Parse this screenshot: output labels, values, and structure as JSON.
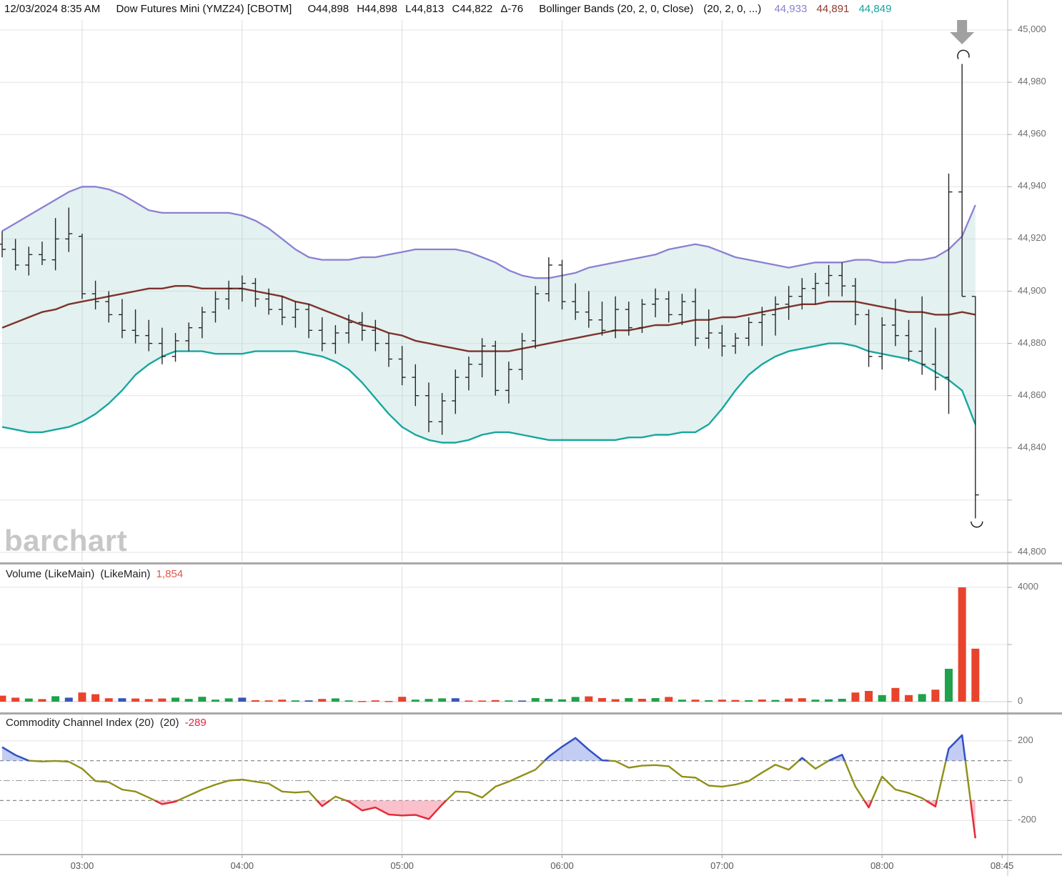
{
  "header": {
    "datetime": "12/03/2024 8:35 AM",
    "symbol": "Dow Futures Mini (YMZ24) [CBOTM]",
    "open": "O44,898",
    "high": "H44,898",
    "low": "L44,813",
    "close": "C44,822",
    "delta": "Δ-76",
    "study": "Bollinger Bands (20, 2, 0, Close)",
    "study_params": "(20, 2, 0, ...)",
    "upper_value": "44,933",
    "middle_value": "44,891",
    "lower_value": "44,849"
  },
  "watermark": "barchart",
  "volume_panel": {
    "title": "Volume (LikeMain)",
    "params": "(LikeMain)",
    "last_value": "1,854"
  },
  "cci_panel": {
    "title": "Commodity Channel Index (20)",
    "params": "(20)",
    "last_value": "-289"
  },
  "colors": {
    "header_upper": "#8781d0",
    "header_middle": "#8d3a31",
    "header_lower": "#12a3a0",
    "volume_value": "#e2574b",
    "cci_value": "#e22741",
    "bar_color": "#262626",
    "bollinger_upper": "#8a80d2",
    "bollinger_middle": "#7d332c",
    "bollinger_lower": "#17a79f",
    "band_fill": "rgba(174,214,211,0.35)",
    "volume_up": "#1fa24a",
    "volume_down": "#e8432d",
    "volume_neutral": "#3a55b4",
    "cci_line": "#8f8f17",
    "cci_high": "#3050cc",
    "cci_low": "#e42b3d",
    "cci_high_fill": "rgba(122,144,230,0.45)",
    "cci_low_fill": "rgba(246,150,168,0.6)",
    "grid": "#e4e4e4",
    "grid_vertical": "#dcdcdc",
    "axis_line": "#c4c4c4",
    "arrow": "#a0a0a0",
    "axis_text": "#6f6f6f"
  },
  "chart_data": {
    "type": "ohlc-bar with bollinger bands, volume and cci panels",
    "start_time": "02:30",
    "interval_minutes": 5,
    "price_axis": {
      "range": [
        44800,
        45000
      ],
      "step": 20,
      "tick_labels": [
        {
          "v": 45000,
          "label": "45,000"
        },
        {
          "v": 44980,
          "label": "44,980"
        },
        {
          "v": 44960,
          "label": "44,960"
        },
        {
          "v": 44940,
          "label": "44,940"
        },
        {
          "v": 44920,
          "label": "44,920"
        },
        {
          "v": 44900,
          "label": "44,900"
        },
        {
          "v": 44880,
          "label": "44,880"
        },
        {
          "v": 44860,
          "label": "44,860"
        },
        {
          "v": 44840,
          "label": "44,840"
        },
        {
          "v": 44800,
          "label": "44,800"
        }
      ]
    },
    "volume_axis": {
      "range": [
        0,
        4000
      ],
      "grid": [
        0,
        2000,
        4000
      ],
      "tick_labels": [
        {
          "v": 4000,
          "label": "4000"
        },
        {
          "v": 0,
          "label": "0"
        }
      ]
    },
    "cci_axis": {
      "solid_grid": [
        200,
        -200
      ],
      "dashed_grid": [
        100,
        -100
      ],
      "dashdot_grid": [
        0
      ],
      "tick_labels": [
        {
          "v": 200,
          "label": "200"
        },
        {
          "v": 0,
          "label": "0"
        },
        {
          "v": -200,
          "label": "-200"
        }
      ]
    },
    "time_ticks": [
      {
        "label": "03:00",
        "minutes": 30,
        "grid": true
      },
      {
        "label": "04:00",
        "minutes": 90,
        "grid": true
      },
      {
        "label": "05:00",
        "minutes": 150,
        "grid": true
      },
      {
        "label": "06:00",
        "minutes": 210,
        "grid": true
      },
      {
        "label": "07:00",
        "minutes": 270,
        "grid": true
      },
      {
        "label": "08:00",
        "minutes": 330,
        "grid": true
      },
      {
        "label": "08:45",
        "minutes": 375,
        "grid": false
      }
    ],
    "badges": [
      {
        "panel": "price",
        "value": 44933,
        "label": "44,933",
        "color": "#7b66c9"
      },
      {
        "panel": "price",
        "value": 44891,
        "label": "44,891",
        "color": "#9e2a23"
      },
      {
        "panel": "price",
        "value": 44849,
        "label": "44,849",
        "color": "#12a3a3"
      },
      {
        "panel": "price",
        "value": 44822,
        "label": "44,822",
        "color": "#0a0a0a"
      },
      {
        "panel": "volume",
        "value": 1854,
        "label": "1854",
        "color": "#e8402c"
      },
      {
        "panel": "cci",
        "value": -289,
        "label": "-289",
        "color": "#e81c35"
      }
    ],
    "ohlc": [
      [
        44918,
        44923,
        44913,
        44916
      ],
      [
        44916,
        44920,
        44908,
        44910
      ],
      [
        44910,
        44917,
        44906,
        44914
      ],
      [
        44914,
        44919,
        44910,
        44912
      ],
      [
        44912,
        44928,
        44908,
        44920
      ],
      [
        44920,
        44932,
        44915,
        44922
      ],
      [
        44921,
        44922,
        44897,
        44899
      ],
      [
        44899,
        44904,
        44893,
        44896
      ],
      [
        44896,
        44900,
        44888,
        44891
      ],
      [
        44891,
        44897,
        44882,
        44885
      ],
      [
        44885,
        44893,
        44880,
        44883
      ],
      [
        44883,
        44889,
        44877,
        44880
      ],
      [
        44880,
        44886,
        44872,
        44875
      ],
      [
        44875,
        44884,
        44873,
        44881
      ],
      [
        44881,
        44888,
        44877,
        44886
      ],
      [
        44886,
        44894,
        44882,
        44892
      ],
      [
        44892,
        44900,
        44888,
        44897
      ],
      [
        44897,
        44904,
        44893,
        44901
      ],
      [
        44901,
        44906,
        44896,
        44903
      ],
      [
        44903,
        44905,
        44894,
        44897
      ],
      [
        44897,
        44901,
        44891,
        44893
      ],
      [
        44893,
        44898,
        44887,
        44890
      ],
      [
        44890,
        44896,
        44886,
        44893
      ],
      [
        44893,
        44895,
        44882,
        44885
      ],
      [
        44885,
        44890,
        44877,
        44880
      ],
      [
        44880,
        44887,
        44876,
        44884
      ],
      [
        44884,
        44891,
        44880,
        44888
      ],
      [
        44888,
        44892,
        44881,
        44885
      ],
      [
        44885,
        44889,
        44877,
        44880
      ],
      [
        44880,
        44884,
        44871,
        44874
      ],
      [
        44874,
        44879,
        44864,
        44867
      ],
      [
        44867,
        44872,
        44856,
        44860
      ],
      [
        44860,
        44865,
        44846,
        44850
      ],
      [
        44850,
        44861,
        44845,
        44858
      ],
      [
        44858,
        44870,
        44853,
        44867
      ],
      [
        44867,
        44875,
        44862,
        44872
      ],
      [
        44872,
        44882,
        44867,
        44879
      ],
      [
        44879,
        44881,
        44860,
        44862
      ],
      [
        44862,
        44873,
        44857,
        44870
      ],
      [
        44870,
        44884,
        44866,
        44881
      ],
      [
        44881,
        44902,
        44878,
        44899
      ],
      [
        44899,
        44913,
        44896,
        44910
      ],
      [
        44910,
        44912,
        44893,
        44896
      ],
      [
        44896,
        44903,
        44889,
        44892
      ],
      [
        44892,
        44900,
        44886,
        44889
      ],
      [
        44889,
        44896,
        44883,
        44885
      ],
      [
        44885,
        44898,
        44882,
        44893
      ],
      [
        44893,
        44896,
        44883,
        44886
      ],
      [
        44886,
        44897,
        44884,
        44895
      ],
      [
        44895,
        44901,
        44890,
        44897
      ],
      [
        44897,
        44900,
        44888,
        44891
      ],
      [
        44891,
        44899,
        44887,
        44896
      ],
      [
        44896,
        44901,
        44879,
        44882
      ],
      [
        44882,
        44893,
        44878,
        44884
      ],
      [
        44884,
        44887,
        44875,
        44879
      ],
      [
        44879,
        44884,
        44876,
        44882
      ],
      [
        44882,
        44890,
        44879,
        44888
      ],
      [
        44888,
        44894,
        44879,
        44891
      ],
      [
        44891,
        44898,
        44883,
        44895
      ],
      [
        44895,
        44902,
        44889,
        44898
      ],
      [
        44898,
        44905,
        44893,
        44901
      ],
      [
        44901,
        44907,
        44895,
        44903
      ],
      [
        44903,
        44910,
        44898,
        44906
      ],
      [
        44906,
        44911,
        44898,
        44902
      ],
      [
        44902,
        44905,
        44887,
        44891
      ],
      [
        44891,
        44893,
        44871,
        44875
      ],
      [
        44875,
        44890,
        44870,
        44887
      ],
      [
        44887,
        44897,
        44879,
        44883
      ],
      [
        44883,
        44889,
        44873,
        44877
      ],
      [
        44877,
        44898,
        44868,
        44872
      ],
      [
        44872,
        44886,
        44862,
        44867
      ],
      [
        44867,
        44945,
        44853,
        44938
      ],
      [
        44938,
        44987,
        44898,
        44898
      ],
      [
        44898,
        44898,
        44813,
        44822
      ]
    ],
    "volume": [
      210,
      140,
      110,
      90,
      190,
      140,
      320,
      260,
      120,
      120,
      110,
      90,
      110,
      140,
      95,
      170,
      70,
      115,
      140,
      50,
      45,
      70,
      45,
      45,
      95,
      115,
      45,
      25,
      45,
      25,
      170,
      70,
      95,
      115,
      120,
      40,
      40,
      55,
      45,
      40,
      125,
      100,
      80,
      165,
      185,
      125,
      85,
      125,
      100,
      125,
      165,
      70,
      70,
      50,
      70,
      60,
      50,
      75,
      60,
      110,
      120,
      70,
      80,
      100,
      320,
      375,
      230,
      480,
      230,
      265,
      420,
      1150,
      4000,
      1854
    ],
    "volume_colors": [
      "r",
      "r",
      "g",
      "r",
      "g",
      "b",
      "r",
      "r",
      "r",
      "b",
      "r",
      "r",
      "r",
      "g",
      "g",
      "g",
      "g",
      "g",
      "b",
      "r",
      "r",
      "r",
      "g",
      "b",
      "r",
      "g",
      "g",
      "r",
      "r",
      "r",
      "r",
      "g",
      "g",
      "g",
      "b",
      "r",
      "r",
      "r",
      "g",
      "b",
      "g",
      "g",
      "g",
      "g",
      "r",
      "r",
      "r",
      "g",
      "r",
      "g",
      "r",
      "g",
      "r",
      "g",
      "r",
      "r",
      "g",
      "r",
      "g",
      "r",
      "r",
      "g",
      "g",
      "g",
      "r",
      "r",
      "g",
      "r",
      "r",
      "g",
      "r",
      "g",
      "r",
      "r"
    ],
    "cci": [
      168,
      128,
      100,
      96,
      99,
      95,
      60,
      -2,
      -8,
      -45,
      -55,
      -85,
      -118,
      -105,
      -75,
      -45,
      -20,
      0,
      5,
      -5,
      -15,
      -55,
      -60,
      -55,
      -128,
      -80,
      -105,
      -150,
      -135,
      -170,
      -175,
      -172,
      -193,
      -120,
      -55,
      -58,
      -85,
      -30,
      -5,
      25,
      55,
      120,
      170,
      214,
      155,
      102,
      98,
      65,
      75,
      78,
      72,
      20,
      15,
      -25,
      -30,
      -20,
      -2,
      40,
      80,
      55,
      114,
      60,
      100,
      130,
      -30,
      -135,
      20,
      -45,
      -62,
      -88,
      -130,
      160,
      228,
      -289
    ],
    "bands": {
      "upper": [
        44923,
        44926,
        44929,
        44932,
        44935,
        44938,
        44940,
        44940,
        44939,
        44937,
        44934,
        44931,
        44930,
        44930,
        44930,
        44930,
        44930,
        44930,
        44929,
        44927,
        44924,
        44920,
        44916,
        44913,
        44912,
        44912,
        44912,
        44913,
        44913,
        44914,
        44915,
        44916,
        44916,
        44916,
        44916,
        44915,
        44913,
        44911,
        44908,
        44906,
        44905,
        44905,
        44906,
        44907,
        44909,
        44910,
        44911,
        44912,
        44913,
        44914,
        44916,
        44917,
        44918,
        44917,
        44915,
        44913,
        44912,
        44911,
        44910,
        44909,
        44910,
        44911,
        44911,
        44911,
        44912,
        44912,
        44911,
        44911,
        44912,
        44912,
        44913,
        44916,
        44921,
        44933
      ],
      "middle": [
        44886,
        44888,
        44890,
        44892,
        44893,
        44895,
        44896,
        44897,
        44898,
        44899,
        44900,
        44901,
        44901,
        44902,
        44902,
        44901,
        44901,
        44901,
        44901,
        44900,
        44899,
        44898,
        44896,
        44895,
        44893,
        44891,
        44889,
        44887,
        44886,
        44884,
        44883,
        44881,
        44880,
        44879,
        44878,
        44877,
        44877,
        44877,
        44877,
        44878,
        44879,
        44880,
        44881,
        44882,
        44883,
        44884,
        44885,
        44885,
        44886,
        44887,
        44887,
        44888,
        44889,
        44889,
        44890,
        44890,
        44891,
        44892,
        44893,
        44894,
        44895,
        44895,
        44896,
        44896,
        44896,
        44895,
        44894,
        44893,
        44892,
        44892,
        44891,
        44891,
        44892,
        44891
      ],
      "lower": [
        44848,
        44847,
        44846,
        44846,
        44847,
        44848,
        44850,
        44853,
        44857,
        44862,
        44868,
        44872,
        44875,
        44877,
        44877,
        44877,
        44876,
        44876,
        44876,
        44877,
        44877,
        44877,
        44877,
        44876,
        44875,
        44873,
        44870,
        44865,
        44859,
        44853,
        44848,
        44845,
        44843,
        44842,
        44842,
        44843,
        44845,
        44846,
        44846,
        44845,
        44844,
        44843,
        44843,
        44843,
        44843,
        44843,
        44843,
        44844,
        44844,
        44845,
        44845,
        44846,
        44846,
        44849,
        44855,
        44862,
        44868,
        44872,
        44875,
        44877,
        44878,
        44879,
        44880,
        44880,
        44879,
        44877,
        44876,
        44875,
        44874,
        44872,
        44869,
        44866,
        44862,
        44849
      ]
    },
    "annotations": {
      "spike_arrow": {
        "bar_index": 72,
        "shape": "down-arrow"
      },
      "arc_top": {
        "bar_index": 72,
        "price": 44990
      },
      "arc_bottom": {
        "bar_index": 73,
        "price": 44811
      }
    }
  }
}
